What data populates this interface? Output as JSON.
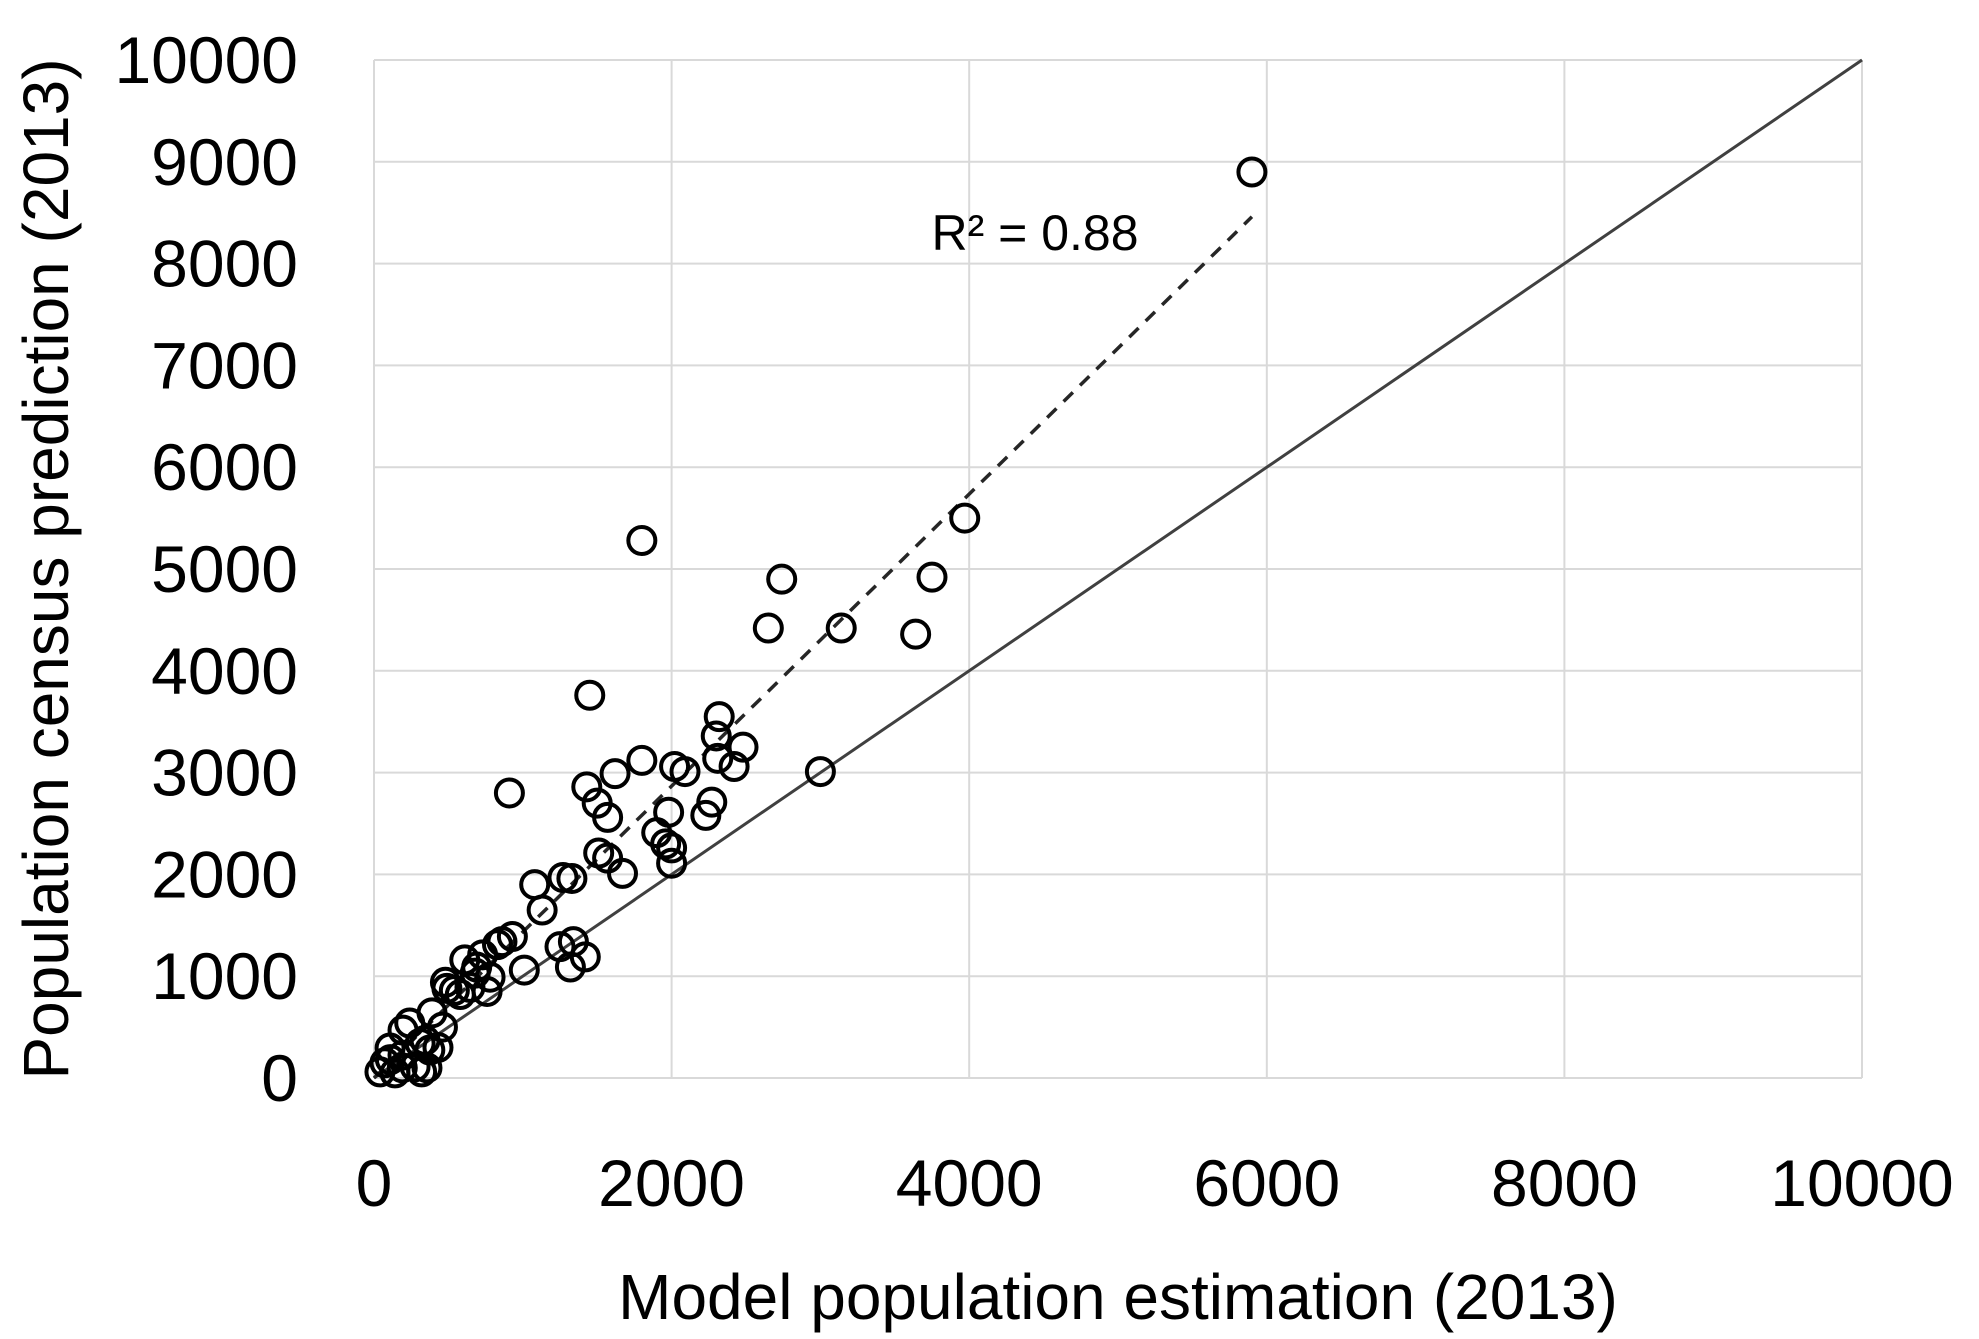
{
  "figure": {
    "background_color": "#ffffff",
    "text_color": "#000000",
    "gridline_color": "#d9d9d9",
    "marker_color": "#000000",
    "identity_line_color": "#404040",
    "trendline_color": "#262626"
  },
  "chart_data": {
    "type": "scatter",
    "title": "",
    "xlabel": "Model population estimation (2013)",
    "ylabel": "Population census prediction (2013)",
    "xlim": [
      0,
      10000
    ],
    "ylim": [
      0,
      10000
    ],
    "x_ticks": [
      0,
      2000,
      4000,
      6000,
      8000,
      10000
    ],
    "y_ticks": [
      0,
      1000,
      2000,
      3000,
      4000,
      5000,
      6000,
      7000,
      8000,
      9000,
      10000
    ],
    "grid": true,
    "legend": false,
    "annotation": {
      "text": "R² = 0.88",
      "x": 4450,
      "y": 8320
    },
    "identity_line": {
      "from": [
        0,
        0
      ],
      "to": [
        10000,
        10000
      ],
      "style": "solid"
    },
    "trendline": {
      "from": [
        0,
        0
      ],
      "to": [
        5900,
        8460
      ],
      "style": "dashed",
      "r_squared": 0.88
    },
    "marker": {
      "shape": "open-circle",
      "radius_px": 13.5,
      "stroke_px": 4
    },
    "points": [
      [
        5900,
        8900
      ],
      [
        3970,
        5500
      ],
      [
        1800,
        5280
      ],
      [
        3750,
        4920
      ],
      [
        2740,
        4900
      ],
      [
        2650,
        4420
      ],
      [
        3140,
        4420
      ],
      [
        3640,
        4360
      ],
      [
        1450,
        3760
      ],
      [
        3000,
        3010
      ],
      [
        910,
        2800
      ],
      [
        2320,
        3550
      ],
      [
        2300,
        3360
      ],
      [
        2310,
        3140
      ],
      [
        2480,
        3250
      ],
      [
        2420,
        3060
      ],
      [
        1800,
        3120
      ],
      [
        2020,
        3060
      ],
      [
        2090,
        3010
      ],
      [
        1620,
        2990
      ],
      [
        1430,
        2860
      ],
      [
        1500,
        2700
      ],
      [
        2270,
        2710
      ],
      [
        2230,
        2580
      ],
      [
        1570,
        2560
      ],
      [
        1980,
        2610
      ],
      [
        1900,
        2410
      ],
      [
        1960,
        2300
      ],
      [
        2000,
        2260
      ],
      [
        2000,
        2110
      ],
      [
        1570,
        2160
      ],
      [
        1510,
        2210
      ],
      [
        1670,
        2010
      ],
      [
        1330,
        1960
      ],
      [
        1080,
        1900
      ],
      [
        1270,
        1970
      ],
      [
        1130,
        1650
      ],
      [
        1250,
        1290
      ],
      [
        1340,
        1340
      ],
      [
        1420,
        1190
      ],
      [
        1320,
        1090
      ],
      [
        1010,
        1060
      ],
      [
        860,
        1340
      ],
      [
        930,
        1390
      ],
      [
        830,
        1310
      ],
      [
        730,
        1210
      ],
      [
        610,
        1160
      ],
      [
        690,
        1090
      ],
      [
        680,
        1030
      ],
      [
        780,
        990
      ],
      [
        760,
        850
      ],
      [
        645,
        890
      ],
      [
        580,
        820
      ],
      [
        540,
        860
      ],
      [
        490,
        880
      ],
      [
        480,
        940
      ],
      [
        390,
        640
      ],
      [
        460,
        500
      ],
      [
        240,
        540
      ],
      [
        195,
        470
      ],
      [
        343,
        370
      ],
      [
        430,
        300
      ],
      [
        310,
        340
      ],
      [
        375,
        275
      ],
      [
        108,
        295
      ],
      [
        195,
        225
      ],
      [
        110,
        180
      ],
      [
        74,
        150
      ],
      [
        276,
        110
      ],
      [
        356,
        100
      ],
      [
        190,
        100
      ],
      [
        141,
        50
      ],
      [
        320,
        60
      ],
      [
        40,
        60
      ]
    ]
  }
}
